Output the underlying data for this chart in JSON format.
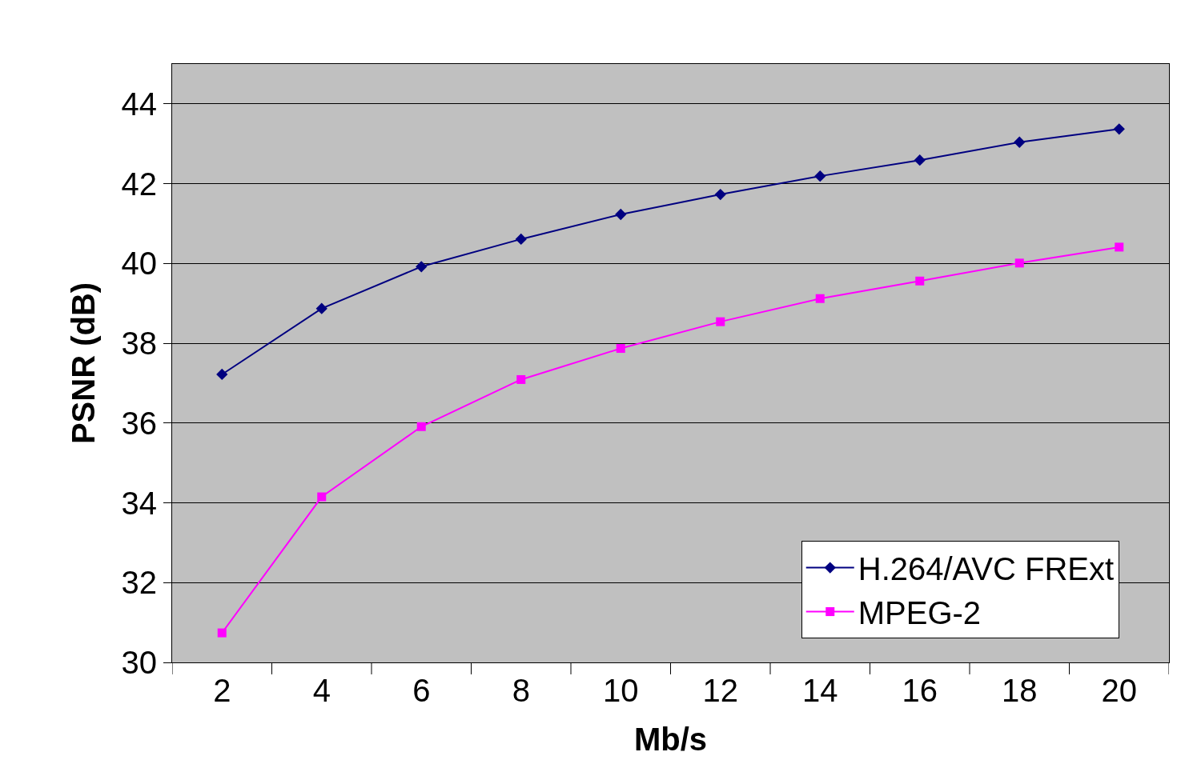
{
  "chart_data": {
    "type": "line",
    "xlabel": "Mb/s",
    "ylabel": "PSNR (dB)",
    "categories": [
      "2",
      "4",
      "6",
      "8",
      "10",
      "12",
      "14",
      "16",
      "18",
      "20"
    ],
    "series": [
      {
        "name": "H.264/AVC FRExt",
        "color": "#000080",
        "marker": "diamond",
        "values": [
          37.22,
          38.87,
          39.92,
          40.61,
          41.23,
          41.73,
          42.19,
          42.59,
          43.04,
          43.37
        ]
      },
      {
        "name": "MPEG-2",
        "color": "#ff00ff",
        "marker": "square",
        "values": [
          30.74,
          34.15,
          35.91,
          37.09,
          37.87,
          38.54,
          39.12,
          39.56,
          40.01,
          40.41
        ]
      }
    ],
    "ylim": [
      30,
      45
    ],
    "yticks": [
      30,
      32,
      34,
      36,
      38,
      40,
      42,
      44
    ],
    "grid": "y",
    "legend": "bottom right",
    "line_style": "solid"
  }
}
